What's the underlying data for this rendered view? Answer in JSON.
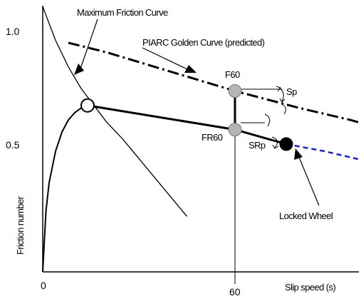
{
  "chart_data": {
    "type": "line",
    "title": "",
    "xlabel": "Slip speed (s)",
    "ylabel": "Friction number",
    "x_ticks": [
      {
        "value": 0,
        "label": "0"
      },
      {
        "value": 60,
        "label": "60"
      }
    ],
    "y_ticks": [
      {
        "value": 0.5,
        "label": "0.5"
      },
      {
        "value": 1.0,
        "label": "1.0"
      }
    ],
    "xlim": [
      0,
      104
    ],
    "ylim": [
      0,
      1.06
    ],
    "grid": false,
    "series": [
      {
        "name": "Maximum Friction Curve",
        "style": "solid-thin",
        "x": [
          0,
          4,
          8,
          12,
          16,
          20,
          25,
          30,
          35,
          40,
          45
        ],
        "y": [
          1.1,
          0.96,
          0.85,
          0.76,
          0.69,
          0.62,
          0.55,
          0.47,
          0.39,
          0.31,
          0.23
        ]
      },
      {
        "name": "PIARC Golden Curve (predicted)",
        "style": "dash-dot",
        "x": [
          8,
          20,
          40,
          60,
          80,
          96,
          104
        ],
        "y": [
          0.95,
          0.91,
          0.83,
          0.75,
          0.68,
          0.63,
          0.6
        ]
      },
      {
        "name": "",
        "style": "solid-thin",
        "x": [
          0,
          1,
          2,
          4,
          6,
          8,
          10,
          12,
          14
        ],
        "y": [
          0.0,
          0.25,
          0.37,
          0.5,
          0.58,
          0.63,
          0.66,
          0.68,
          0.69
        ]
      },
      {
        "name": "",
        "style": "solid-thick",
        "x": [
          14,
          60,
          76
        ],
        "y": [
          0.69,
          0.59,
          0.53
        ]
      },
      {
        "name": "",
        "style": "dashed-blue",
        "x": [
          76,
          88,
          104
        ],
        "y": [
          0.53,
          0.5,
          0.45
        ]
      }
    ],
    "points": [
      {
        "name": "",
        "x": 14,
        "y": 0.69,
        "style": "open-circle"
      },
      {
        "name": "F60",
        "x": 60,
        "y": 0.75,
        "style": "gray-circle"
      },
      {
        "name": "FR60",
        "x": 60,
        "y": 0.59,
        "style": "gray-circle"
      },
      {
        "name": "",
        "x": 76,
        "y": 0.53,
        "style": "filled-circle"
      }
    ],
    "annotations": [
      "Maximum Friction Curve",
      "PIARC Golden Curve (predicted)",
      "F60",
      "FR60",
      "Sp",
      "SRp",
      "Locked Wheel"
    ]
  },
  "colors": {
    "axis": "#000000",
    "dash_blue": "#1a23c8",
    "point_gray": "#b4b4b4"
  }
}
